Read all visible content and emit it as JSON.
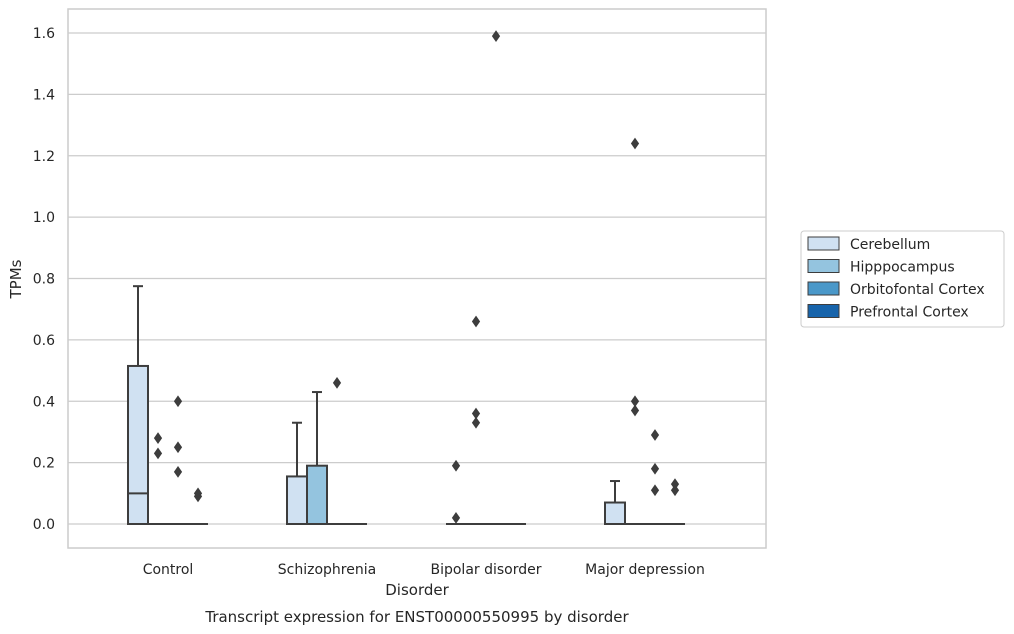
{
  "chart_data": {
    "type": "box",
    "title": "",
    "caption": "Transcript expression for ENST00000550995 by disorder",
    "xlabel": "Disorder",
    "ylabel": "TPMs",
    "ylim": [
      -0.08,
      1.67
    ],
    "yticks": [
      0.0,
      0.2,
      0.4,
      0.6,
      0.8,
      1.0,
      1.2,
      1.4,
      1.6
    ],
    "ytick_labels": [
      "0.0",
      "0.2",
      "0.4",
      "0.6",
      "0.8",
      "1.0",
      "1.2",
      "1.4",
      "1.6"
    ],
    "grid": "horizontal",
    "legend_position": "right",
    "categories": [
      "Control",
      "Schizophrenia",
      "Bipolar disorder",
      "Major depression"
    ],
    "series": [
      {
        "name": "Cerebellum",
        "color": "#d0e1f2",
        "boxes": [
          {
            "q1": 0.0,
            "median": 0.1,
            "q3": 0.515,
            "whisker_low": 0.0,
            "whisker_high": 0.775,
            "outliers": []
          },
          {
            "q1": 0.0,
            "median": 0.0,
            "q3": 0.155,
            "whisker_low": 0.0,
            "whisker_high": 0.33,
            "outliers": []
          },
          {
            "q1": 0.0,
            "median": 0.0,
            "q3": 0.0,
            "whisker_low": 0.0,
            "whisker_high": 0.0,
            "outliers": [
              0.02,
              0.19
            ]
          },
          {
            "q1": 0.0,
            "median": 0.0,
            "q3": 0.07,
            "whisker_low": 0.0,
            "whisker_high": 0.14,
            "outliers": []
          }
        ]
      },
      {
        "name": "Hipppocampus",
        "color": "#94c4df",
        "boxes": [
          {
            "q1": 0.0,
            "median": 0.0,
            "q3": 0.0,
            "whisker_low": 0.0,
            "whisker_high": 0.0,
            "outliers": [
              0.23,
              0.28
            ]
          },
          {
            "q1": 0.0,
            "median": 0.0,
            "q3": 0.19,
            "whisker_low": 0.0,
            "whisker_high": 0.43,
            "outliers": []
          },
          {
            "q1": 0.0,
            "median": 0.0,
            "q3": 0.0,
            "whisker_low": 0.0,
            "whisker_high": 0.0,
            "outliers": [
              0.33,
              0.36,
              0.66
            ]
          },
          {
            "q1": 0.0,
            "median": 0.0,
            "q3": 0.0,
            "whisker_low": 0.0,
            "whisker_high": 0.0,
            "outliers": [
              0.37,
              0.4,
              1.24
            ]
          }
        ]
      },
      {
        "name": "Orbitofontal Cortex",
        "color": "#4a98c9",
        "boxes": [
          {
            "q1": 0.0,
            "median": 0.0,
            "q3": 0.0,
            "whisker_low": 0.0,
            "whisker_high": 0.0,
            "outliers": [
              0.17,
              0.25,
              0.4
            ]
          },
          {
            "q1": 0.0,
            "median": 0.0,
            "q3": 0.0,
            "whisker_low": 0.0,
            "whisker_high": 0.0,
            "outliers": [
              0.46
            ]
          },
          {
            "q1": 0.0,
            "median": 0.0,
            "q3": 0.0,
            "whisker_low": 0.0,
            "whisker_high": 0.0,
            "outliers": [
              1.59
            ]
          },
          {
            "q1": 0.0,
            "median": 0.0,
            "q3": 0.0,
            "whisker_low": 0.0,
            "whisker_high": 0.0,
            "outliers": [
              0.11,
              0.18,
              0.29
            ]
          }
        ]
      },
      {
        "name": "Prefrontal Cortex",
        "color": "#1764ab",
        "boxes": [
          {
            "q1": 0.0,
            "median": 0.0,
            "q3": 0.0,
            "whisker_low": 0.0,
            "whisker_high": 0.0,
            "outliers": [
              0.09,
              0.1
            ]
          },
          {
            "q1": 0.0,
            "median": 0.0,
            "q3": 0.0,
            "whisker_low": 0.0,
            "whisker_high": 0.0,
            "outliers": []
          },
          {
            "q1": 0.0,
            "median": 0.0,
            "q3": 0.0,
            "whisker_low": 0.0,
            "whisker_high": 0.0,
            "outliers": []
          },
          {
            "q1": 0.0,
            "median": 0.0,
            "q3": 0.0,
            "whisker_low": 0.0,
            "whisker_high": 0.0,
            "outliers": [
              0.11,
              0.13
            ]
          }
        ]
      }
    ]
  }
}
